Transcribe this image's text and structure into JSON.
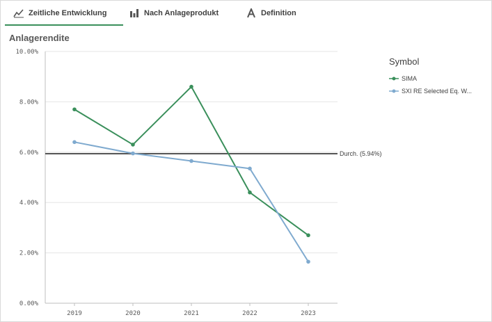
{
  "tabs": [
    {
      "label": "Zeitliche Entwicklung",
      "icon": "line-chart-icon",
      "active": true
    },
    {
      "label": "Nach Anlageprodukt",
      "icon": "bar-chart-icon",
      "active": false
    },
    {
      "label": "Definition",
      "icon": "letter-a-icon",
      "active": false
    }
  ],
  "colors": {
    "sima": "#3a8f5b",
    "sxi": "#7faacf",
    "average_line": "#555555",
    "grid": "#e6e6e6"
  },
  "chart_data": {
    "type": "line",
    "title": "Anlagerendite",
    "categories": [
      "2019",
      "2020",
      "2021",
      "2022",
      "2023"
    ],
    "y_ticks": [
      "0.00%",
      "2.00%",
      "4.00%",
      "6.00%",
      "8.00%",
      "10.00%"
    ],
    "ylim": [
      0,
      10
    ],
    "grid": true,
    "legend_position": "right",
    "legend_title": "Symbol",
    "series": [
      {
        "name": "SIMA",
        "values": [
          7.7,
          6.3,
          8.6,
          4.4,
          2.7
        ]
      },
      {
        "name": "SXI RE Selected Eq. W...",
        "values": [
          6.4,
          5.95,
          5.65,
          5.35,
          1.65
        ]
      }
    ],
    "reference_line": {
      "label": "Durch. (5.94%)",
      "value": 5.94
    }
  }
}
